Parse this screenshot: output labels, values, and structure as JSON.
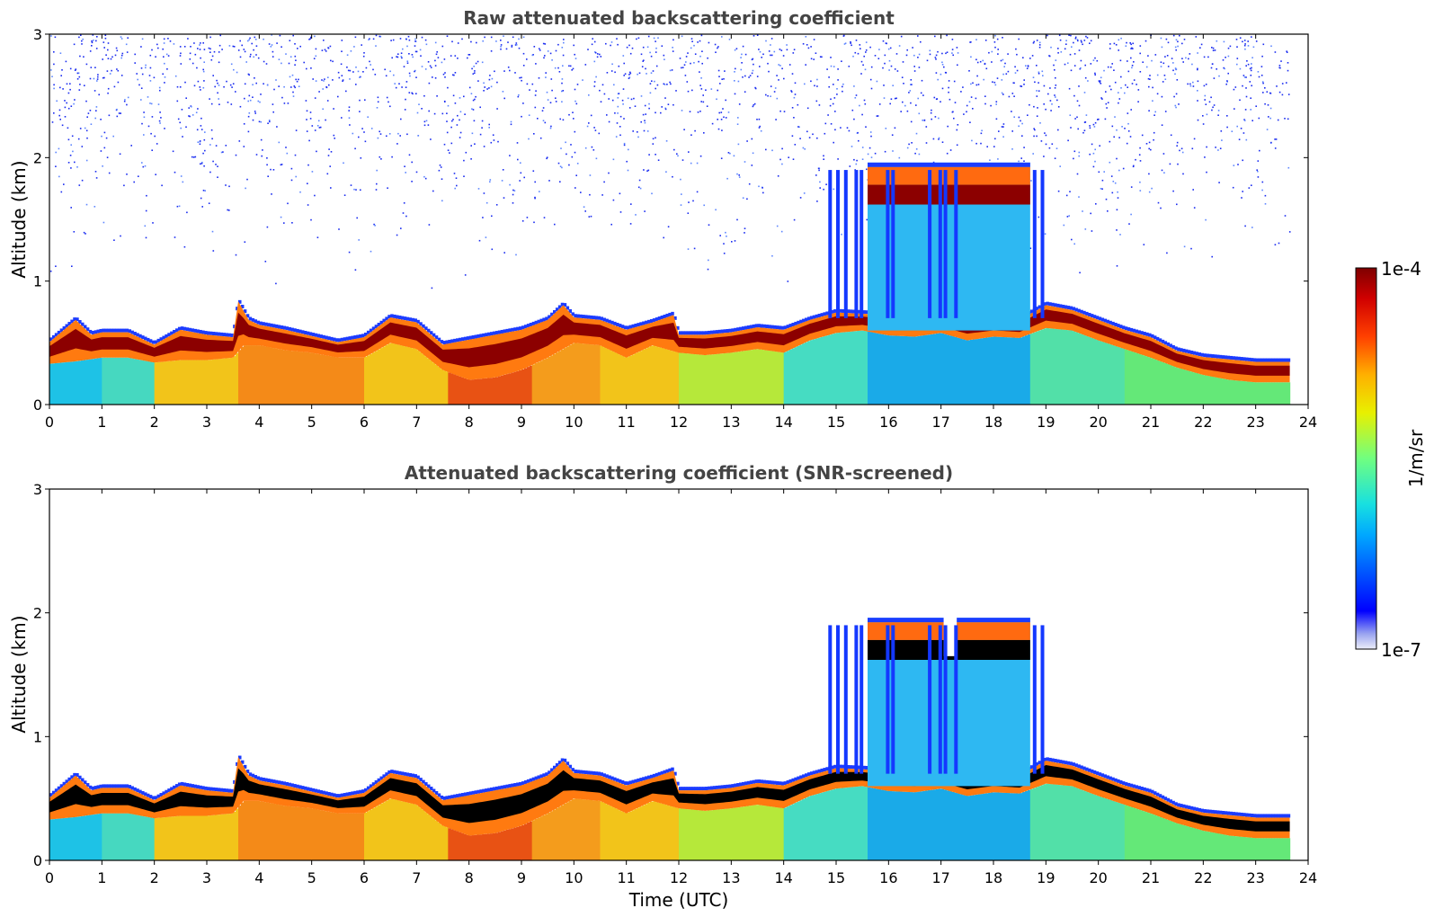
{
  "chart_data": [
    {
      "type": "heatmap",
      "title": "Raw attenuated backscattering coefficient",
      "xlabel": "",
      "ylabel": "Altitude (km)",
      "xlim": [
        0,
        24
      ],
      "ylim": [
        0,
        3
      ],
      "xticks": [
        "0",
        "1",
        "2",
        "3",
        "4",
        "5",
        "6",
        "7",
        "8",
        "9",
        "10",
        "11",
        "12",
        "13",
        "14",
        "15",
        "16",
        "17",
        "18",
        "19",
        "20",
        "21",
        "22",
        "23",
        "24"
      ],
      "yticks": [
        "0",
        "1",
        "2",
        "3"
      ],
      "data_end_time": 23.65,
      "noise": true,
      "layer_top": [
        [
          0,
          0.52
        ],
        [
          0.5,
          0.7
        ],
        [
          0.8,
          0.58
        ],
        [
          1,
          0.6
        ],
        [
          1.5,
          0.6
        ],
        [
          2,
          0.5
        ],
        [
          2.5,
          0.62
        ],
        [
          3,
          0.58
        ],
        [
          3.5,
          0.56
        ],
        [
          3.6,
          0.85
        ],
        [
          3.8,
          0.7
        ],
        [
          4,
          0.66
        ],
        [
          4.5,
          0.62
        ],
        [
          5,
          0.57
        ],
        [
          5.5,
          0.52
        ],
        [
          6,
          0.56
        ],
        [
          6.5,
          0.72
        ],
        [
          7,
          0.68
        ],
        [
          7.5,
          0.5
        ],
        [
          8,
          0.54
        ],
        [
          8.5,
          0.58
        ],
        [
          9,
          0.62
        ],
        [
          9.5,
          0.7
        ],
        [
          9.8,
          0.82
        ],
        [
          10,
          0.72
        ],
        [
          10.5,
          0.7
        ],
        [
          11,
          0.62
        ],
        [
          11.5,
          0.68
        ],
        [
          11.9,
          0.74
        ],
        [
          12,
          0.58
        ],
        [
          12.5,
          0.58
        ],
        [
          13,
          0.6
        ],
        [
          13.5,
          0.64
        ],
        [
          14,
          0.62
        ],
        [
          14.5,
          0.7
        ],
        [
          15,
          0.76
        ],
        [
          15.5,
          0.75
        ],
        [
          16,
          0.74
        ],
        [
          16.5,
          0.72
        ],
        [
          17,
          0.75
        ],
        [
          17.5,
          0.7
        ],
        [
          18,
          0.72
        ],
        [
          18.5,
          0.7
        ],
        [
          19,
          0.82
        ],
        [
          19.5,
          0.78
        ],
        [
          20,
          0.7
        ],
        [
          20.5,
          0.62
        ],
        [
          21,
          0.56
        ],
        [
          21.5,
          0.45
        ],
        [
          22,
          0.4
        ],
        [
          22.5,
          0.38
        ],
        [
          23,
          0.36
        ],
        [
          23.65,
          0.36
        ]
      ],
      "layer_base": [
        [
          0,
          0.33
        ],
        [
          0.5,
          0.35
        ],
        [
          1,
          0.38
        ],
        [
          1.5,
          0.38
        ],
        [
          2,
          0.34
        ],
        [
          2.5,
          0.36
        ],
        [
          3,
          0.36
        ],
        [
          3.5,
          0.38
        ],
        [
          3.7,
          0.48
        ],
        [
          4,
          0.48
        ],
        [
          4.5,
          0.44
        ],
        [
          5,
          0.42
        ],
        [
          5.5,
          0.38
        ],
        [
          6,
          0.38
        ],
        [
          6.5,
          0.5
        ],
        [
          7,
          0.45
        ],
        [
          7.5,
          0.28
        ],
        [
          8,
          0.2
        ],
        [
          8.5,
          0.22
        ],
        [
          9,
          0.28
        ],
        [
          9.5,
          0.38
        ],
        [
          10,
          0.5
        ],
        [
          10.5,
          0.48
        ],
        [
          11,
          0.38
        ],
        [
          11.5,
          0.48
        ],
        [
          12,
          0.42
        ],
        [
          12.5,
          0.4
        ],
        [
          13,
          0.42
        ],
        [
          13.5,
          0.45
        ],
        [
          14,
          0.42
        ],
        [
          14.5,
          0.52
        ],
        [
          15,
          0.58
        ],
        [
          15.5,
          0.6
        ],
        [
          16,
          0.56
        ],
        [
          16.5,
          0.55
        ],
        [
          17,
          0.58
        ],
        [
          17.5,
          0.52
        ],
        [
          18,
          0.55
        ],
        [
          18.5,
          0.54
        ],
        [
          19,
          0.62
        ],
        [
          19.5,
          0.6
        ],
        [
          20,
          0.52
        ],
        [
          20.5,
          0.45
        ],
        [
          21,
          0.38
        ],
        [
          21.5,
          0.3
        ],
        [
          22,
          0.24
        ],
        [
          22.5,
          0.2
        ],
        [
          23,
          0.18
        ],
        [
          23.65,
          0.18
        ]
      ],
      "cloud": {
        "x": [
          15.6,
          18.7
        ],
        "top": [
          1.96,
          1.92,
          1.9,
          1.88,
          1.86
        ],
        "core": [
          1.62,
          1.78
        ]
      },
      "cloud_streaks": [
        14.85,
        15.0,
        15.15,
        15.35,
        15.45,
        15.95,
        16.05,
        16.75,
        16.95,
        17.05,
        17.25,
        18.75,
        18.9
      ],
      "colorbar": {
        "min_label": "1e-7",
        "max_label": "1e-4",
        "label": "1/m/sr",
        "colormap": "jet",
        "low_color": "#eceef8",
        "high_color": "#7f0000"
      }
    },
    {
      "type": "heatmap",
      "title": "Attenuated backscattering coefficient (SNR-screened)",
      "xlabel": "Time (UTC)",
      "ylabel": "Altitude (km)",
      "xlim": [
        0,
        24
      ],
      "ylim": [
        0,
        3
      ],
      "xticks": [
        "0",
        "1",
        "2",
        "3",
        "4",
        "5",
        "6",
        "7",
        "8",
        "9",
        "10",
        "11",
        "12",
        "13",
        "14",
        "15",
        "16",
        "17",
        "18",
        "19",
        "20",
        "21",
        "22",
        "23",
        "24"
      ],
      "yticks": [
        "0",
        "1",
        "2",
        "3"
      ],
      "data_end_time": 23.65,
      "noise": false,
      "saturated_core_color": "#000000"
    }
  ]
}
